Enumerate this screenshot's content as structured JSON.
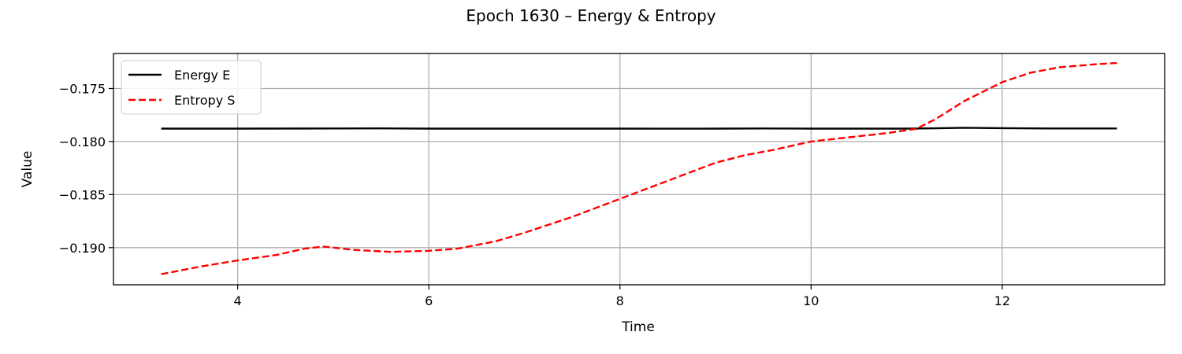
{
  "chart_data": {
    "type": "line",
    "title": "Epoch 1630 – Energy & Entropy",
    "xlabel": "Time",
    "ylabel": "Value",
    "xlim": [
      2.7,
      13.7
    ],
    "ylim": [
      -0.1935,
      -0.1717
    ],
    "xticks": [
      4,
      6,
      8,
      10,
      12
    ],
    "xtick_labels": [
      "4",
      "6",
      "8",
      "10",
      "12"
    ],
    "yticks": [
      -0.175,
      -0.18,
      -0.185,
      -0.19
    ],
    "ytick_labels": [
      "−0.175",
      "−0.180",
      "−0.185",
      "−0.190"
    ],
    "grid": true,
    "legend_position": "top-left",
    "series": [
      {
        "name": "Energy E",
        "color": "#000000",
        "style": "solid",
        "x": [
          3.2,
          4.0,
          5.0,
          5.5,
          6.0,
          7.0,
          8.0,
          8.5,
          9.0,
          9.5,
          10.0,
          10.5,
          11.0,
          11.3,
          11.6,
          12.0,
          12.5,
          13.2
        ],
        "y": [
          -0.17878,
          -0.17878,
          -0.17877,
          -0.17876,
          -0.17878,
          -0.17878,
          -0.17878,
          -0.17879,
          -0.17878,
          -0.17877,
          -0.17878,
          -0.17878,
          -0.17878,
          -0.17875,
          -0.1787,
          -0.17874,
          -0.17877,
          -0.17877
        ]
      },
      {
        "name": "Entropy S",
        "color": "#ff0000",
        "style": "dashed",
        "x": [
          3.2,
          3.6,
          4.0,
          4.4,
          4.7,
          4.9,
          5.2,
          5.6,
          6.0,
          6.3,
          6.7,
          7.0,
          7.5,
          8.0,
          8.5,
          9.0,
          9.3,
          9.6,
          10.0,
          10.4,
          10.8,
          11.1,
          11.3,
          11.6,
          12.0,
          12.3,
          12.6,
          13.0,
          13.2
        ],
        "y": [
          -0.1925,
          -0.1918,
          -0.1912,
          -0.1907,
          -0.1901,
          -0.1899,
          -0.1902,
          -0.1904,
          -0.1903,
          -0.1901,
          -0.1894,
          -0.1886,
          -0.1871,
          -0.1854,
          -0.1837,
          -0.182,
          -0.1813,
          -0.1808,
          -0.18,
          -0.1796,
          -0.1792,
          -0.1788,
          -0.1779,
          -0.1762,
          -0.1744,
          -0.1735,
          -0.173,
          -0.1727,
          -0.1726
        ]
      }
    ]
  }
}
